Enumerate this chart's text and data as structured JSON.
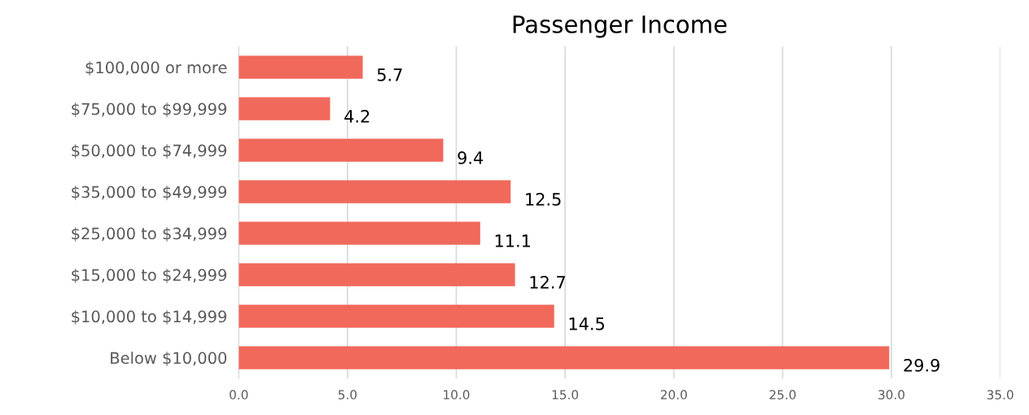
{
  "chart_data": {
    "type": "bar",
    "orientation": "horizontal",
    "title": "Passenger Income",
    "categories": [
      "$100,000 or more",
      "$75,000 to $99,999",
      "$50,000 to $74,999",
      "$35,000 to $49,999",
      "$25,000 to $34,999",
      "$15,000 to $24,999",
      "$10,000 to $14,999",
      "Below $10,000"
    ],
    "values": [
      5.7,
      4.2,
      9.4,
      12.5,
      11.1,
      12.7,
      14.5,
      29.9
    ],
    "color": "#f0695b",
    "xlim": [
      0,
      35
    ],
    "xticks": [
      {
        "value": 0,
        "label": "0.0"
      },
      {
        "value": 5,
        "label": "5.0"
      },
      {
        "value": 10,
        "label": "10.0"
      },
      {
        "value": 15,
        "label": "15.0"
      },
      {
        "value": 20,
        "label": "20.0"
      },
      {
        "value": 25,
        "label": "25.0"
      },
      {
        "value": 30,
        "label": "30.0"
      },
      {
        "value": 35,
        "label": "35.0"
      }
    ],
    "grid": "x",
    "data_labels": true
  }
}
